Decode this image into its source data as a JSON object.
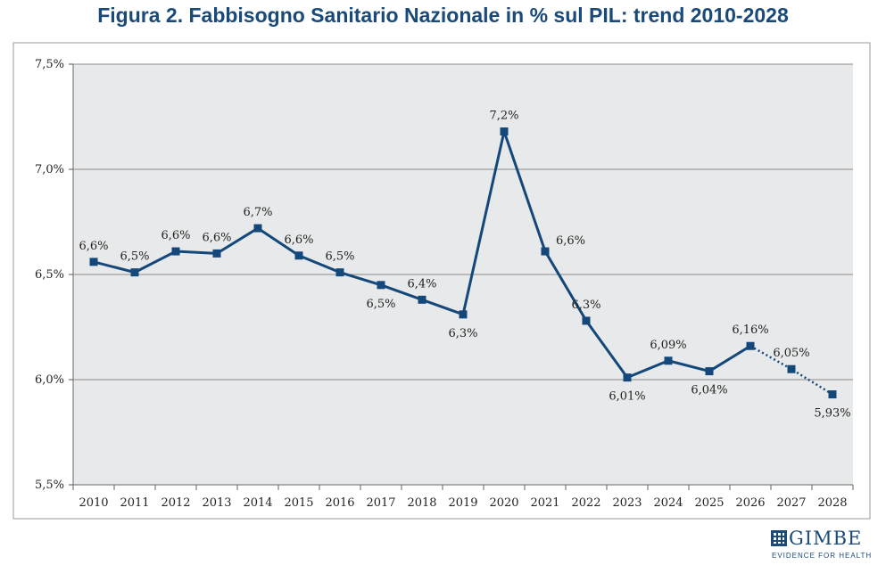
{
  "title": "Figura 2. Fabbisogno Sanitario Nazionale in % sul PIL: trend 2010-2028",
  "chart_data": {
    "type": "line",
    "categories": [
      "2010",
      "2011",
      "2012",
      "2013",
      "2014",
      "2015",
      "2016",
      "2017",
      "2018",
      "2019",
      "2020",
      "2021",
      "2022",
      "2023",
      "2024",
      "2025",
      "2026",
      "2027",
      "2028"
    ],
    "values": [
      6.56,
      6.51,
      6.61,
      6.6,
      6.72,
      6.59,
      6.51,
      6.45,
      6.38,
      6.31,
      7.18,
      6.61,
      6.28,
      6.01,
      6.09,
      6.04,
      6.16,
      6.05,
      5.93
    ],
    "data_labels": [
      "6,6%",
      "6,5%",
      "6,6%",
      "6,6%",
      "6,7%",
      "6,6%",
      "6,5%",
      "6,5%",
      "6,4%",
      "6,3%",
      "7,2%",
      "6,6%",
      "6,3%",
      "6,01%",
      "6,09%",
      "6,04%",
      "6,16%",
      "6,05%",
      "5,93%"
    ],
    "label_position": [
      "above",
      "above",
      "above",
      "above",
      "above",
      "above",
      "above",
      "below",
      "above",
      "below",
      "above",
      "right",
      "above",
      "below",
      "above",
      "below",
      "above",
      "above",
      "below"
    ],
    "projection_from_index": 16,
    "ylim": [
      5.5,
      7.5
    ],
    "yticks": [
      5.5,
      6.0,
      6.5,
      7.0,
      7.5
    ],
    "ytick_labels": [
      "5,5%",
      "6,0%",
      "6,5%",
      "7,0%",
      "7,5%"
    ],
    "grid": true,
    "line_color": "#14477a",
    "plot_background": "#e8e9ea",
    "grid_color": "#8c8c8c"
  },
  "logo": {
    "word": "GIMBE",
    "tagline": "EVIDENCE FOR HEALTH"
  }
}
